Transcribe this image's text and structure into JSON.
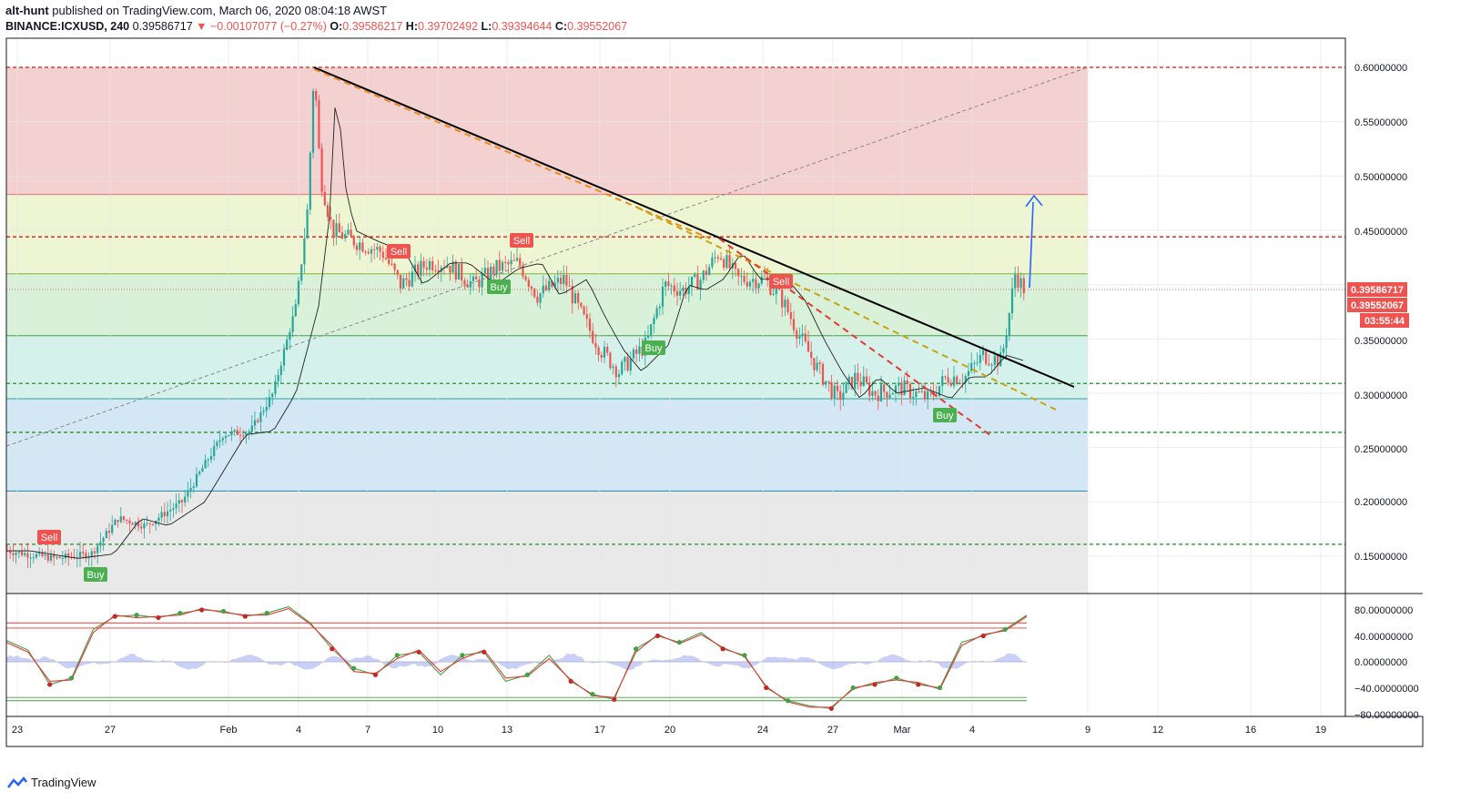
{
  "header": {
    "author": "alt-hunt",
    "published": "published on TradingView.com, March 06, 2020 08:04:18 AWST",
    "symbol": "BINANCE:ICXUSD, 240",
    "last": "0.39586717",
    "change": "▼ −0.00107077 (−0.27%)",
    "o_label": "O:",
    "o": "0.39586217",
    "h_label": "H:",
    "h": "0.39702492",
    "l_label": "L:",
    "l": "0.39394644",
    "c_label": "C:",
    "c": "0.39552067"
  },
  "price_labels": {
    "last": "0.39586717",
    "close": "0.39552067",
    "timer": "03:55:44"
  },
  "brand": "TradingView",
  "colors": {
    "up": "#26a69a",
    "down": "#ef5350",
    "zone_red": "#f4d1d1",
    "zone_yellow": "#eef5d3",
    "zone_green": "#d8f1d8",
    "zone_mint": "#d5f1eb",
    "zone_blue": "#d4e7f5",
    "zone_grey": "#e9e9e9"
  },
  "chart_data": [
    {
      "type": "candlestick",
      "title": "",
      "xlabel": "",
      "ylabel": "",
      "x_ticks": [
        "23",
        "27",
        "Feb",
        "4",
        "7",
        "10",
        "13",
        "17",
        "20",
        "24",
        "27",
        "Mar",
        "4",
        "9",
        "12",
        "16",
        "19"
      ],
      "y_ticks": [
        "0.60000000",
        "0.55000000",
        "0.50000000",
        "0.45000000",
        "0.35000000",
        "0.30000000",
        "0.25000000",
        "0.20000000",
        "0.15000000"
      ],
      "ylim": [
        0.12,
        0.63
      ],
      "series_close": [
        [
          "23",
          0.153
        ],
        [
          "27",
          0.172
        ],
        [
          "Feb",
          0.262
        ],
        [
          "4",
          0.4
        ],
        [
          "4",
          0.57
        ],
        [
          "7",
          0.43
        ],
        [
          "10",
          0.415
        ],
        [
          "13",
          0.425
        ],
        [
          "17",
          0.335
        ],
        [
          "20",
          0.41
        ],
        [
          "24",
          0.405
        ],
        [
          "27",
          0.295
        ],
        [
          "Mar",
          0.305
        ],
        [
          "4",
          0.33
        ],
        [
          "4",
          0.396
        ]
      ],
      "signals": [
        {
          "label": "Sell",
          "x": "24 Jan",
          "price": 0.18
        },
        {
          "label": "Buy",
          "x": "25 Jan",
          "price": 0.148
        },
        {
          "label": "Sell",
          "x": "8 Feb",
          "price": 0.435
        },
        {
          "label": "Sell",
          "x": "13 Feb",
          "price": 0.445
        },
        {
          "label": "Buy",
          "x": "12 Feb",
          "price": 0.4
        },
        {
          "label": "Buy",
          "x": "19 Feb",
          "price": 0.345
        },
        {
          "label": "Sell",
          "x": "24 Feb",
          "price": 0.41
        },
        {
          "label": "Buy",
          "x": "2 Mar",
          "price": 0.29
        }
      ],
      "zones": [
        {
          "from": 0.483,
          "to": 0.6,
          "color": "zone_red"
        },
        {
          "from": 0.41,
          "to": 0.483,
          "color": "zone_yellow"
        },
        {
          "from": 0.353,
          "to": 0.41,
          "color": "zone_green"
        },
        {
          "from": 0.295,
          "to": 0.353,
          "color": "zone_mint"
        },
        {
          "from": 0.21,
          "to": 0.295,
          "color": "zone_blue"
        },
        {
          "from": 0.12,
          "to": 0.21,
          "color": "zone_grey"
        }
      ],
      "horizontal_levels": [
        0.6,
        0.444,
        0.309,
        0.264,
        0.161
      ]
    },
    {
      "type": "line",
      "title": "",
      "y_ticks": [
        "80.00000000",
        "40.00000000",
        "0.00000000",
        "−40.00000000",
        "−80.00000000"
      ],
      "ylim": [
        -82,
        88
      ],
      "upper_band": [
        60,
        52
      ],
      "lower_band": [
        -55,
        -60
      ],
      "series": [
        {
          "values": [
            33,
            18,
            -35,
            -25,
            50,
            70,
            72,
            68,
            75,
            80,
            78,
            70,
            75,
            85,
            60,
            20,
            -10,
            -20,
            10,
            15,
            -20,
            10,
            15,
            -30,
            -20,
            10,
            -30,
            -50,
            -58,
            20,
            40,
            30,
            45,
            20,
            10,
            -40,
            -60,
            -68,
            -72,
            -40,
            -35,
            -25,
            -35,
            -40,
            30,
            40,
            50,
            72
          ]
        },
        {
          "values": [
            30,
            15,
            -30,
            -28,
            45,
            72,
            68,
            70,
            72,
            82,
            76,
            72,
            72,
            82,
            58,
            25,
            -15,
            -18,
            5,
            18,
            -15,
            5,
            18,
            -25,
            -22,
            5,
            -28,
            -52,
            -55,
            15,
            42,
            28,
            42,
            22,
            8,
            -38,
            -62,
            -70,
            -70,
            -42,
            -32,
            -28,
            -32,
            -42,
            25,
            42,
            48,
            70
          ]
        }
      ]
    }
  ]
}
